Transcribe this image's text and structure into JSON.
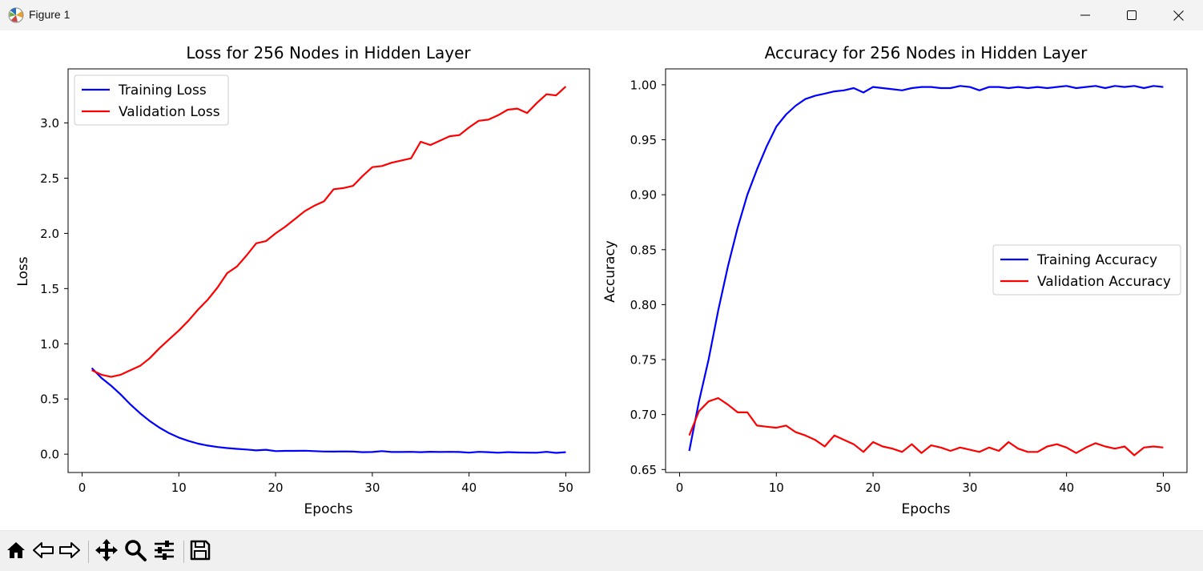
{
  "window": {
    "title": "Figure 1",
    "icons": {
      "app": "matplotlib-app-icon",
      "minimize": "minimize-icon",
      "maximize": "maximize-icon",
      "close": "close-icon"
    }
  },
  "toolbar": {
    "buttons": [
      "home-icon",
      "back-arrow-icon",
      "forward-arrow-icon",
      "pan-move-icon",
      "zoom-magnifier-icon",
      "configure-subplots-icon",
      "save-disk-icon"
    ]
  },
  "colors": {
    "training": "#0000ff",
    "validation": "#ff0000"
  },
  "chart_data": [
    {
      "type": "line",
      "title": "Loss for 256 Nodes in Hidden Layer",
      "xlabel": "Epochs",
      "ylabel": "Loss",
      "xlim": [
        -1.45,
        52.45
      ],
      "ylim": [
        -0.166,
        3.49
      ],
      "xticks": [
        0,
        10,
        20,
        30,
        40,
        50
      ],
      "yticks": [
        0.0,
        0.5,
        1.0,
        1.5,
        2.0,
        2.5,
        3.0
      ],
      "ytick_labels": [
        "0.0",
        "0.5",
        "1.0",
        "1.5",
        "2.0",
        "2.5",
        "3.0"
      ],
      "legend": "upper left",
      "x": [
        1,
        2,
        3,
        4,
        5,
        6,
        7,
        8,
        9,
        10,
        11,
        12,
        13,
        14,
        15,
        16,
        17,
        18,
        19,
        20,
        21,
        22,
        23,
        24,
        25,
        26,
        27,
        28,
        29,
        30,
        31,
        32,
        33,
        34,
        35,
        36,
        37,
        38,
        39,
        40,
        41,
        42,
        43,
        44,
        45,
        46,
        47,
        48,
        49,
        50
      ],
      "series": [
        {
          "name": "Training Loss",
          "color": "#0000ff",
          "values": [
            0.78,
            0.69,
            0.62,
            0.54,
            0.45,
            0.37,
            0.3,
            0.24,
            0.19,
            0.15,
            0.12,
            0.095,
            0.078,
            0.065,
            0.055,
            0.048,
            0.042,
            0.034,
            0.04,
            0.028,
            0.03,
            0.03,
            0.031,
            0.028,
            0.024,
            0.023,
            0.025,
            0.023,
            0.018,
            0.02,
            0.028,
            0.02,
            0.02,
            0.021,
            0.018,
            0.022,
            0.02,
            0.021,
            0.02,
            0.014,
            0.021,
            0.018,
            0.013,
            0.018,
            0.015,
            0.014,
            0.013,
            0.021,
            0.012,
            0.018
          ]
        },
        {
          "name": "Validation Loss",
          "color": "#ff0000",
          "values": [
            0.76,
            0.72,
            0.7,
            0.72,
            0.76,
            0.8,
            0.87,
            0.96,
            1.04,
            1.12,
            1.21,
            1.31,
            1.4,
            1.51,
            1.64,
            1.7,
            1.8,
            1.91,
            1.93,
            2.0,
            2.06,
            2.13,
            2.2,
            2.25,
            2.29,
            2.4,
            2.41,
            2.43,
            2.52,
            2.6,
            2.61,
            2.64,
            2.66,
            2.68,
            2.83,
            2.8,
            2.84,
            2.88,
            2.89,
            2.96,
            3.02,
            3.03,
            3.07,
            3.12,
            3.13,
            3.09,
            3.18,
            3.26,
            3.25,
            3.33
          ]
        }
      ]
    },
    {
      "type": "line",
      "title": "Accuracy for 256 Nodes in Hidden Layer",
      "xlabel": "Epochs",
      "ylabel": "Accuracy",
      "xlim": [
        -1.45,
        52.45
      ],
      "ylim": [
        0.6473,
        1.0145
      ],
      "xticks": [
        0,
        10,
        20,
        30,
        40,
        50
      ],
      "yticks": [
        0.65,
        0.7,
        0.75,
        0.8,
        0.85,
        0.9,
        0.95,
        1.0
      ],
      "ytick_labels": [
        "0.65",
        "0.70",
        "0.75",
        "0.80",
        "0.85",
        "0.90",
        "0.95",
        "1.00"
      ],
      "legend": "center right",
      "x": [
        1,
        2,
        3,
        4,
        5,
        6,
        7,
        8,
        9,
        10,
        11,
        12,
        13,
        14,
        15,
        16,
        17,
        18,
        19,
        20,
        21,
        22,
        23,
        24,
        25,
        26,
        27,
        28,
        29,
        30,
        31,
        32,
        33,
        34,
        35,
        36,
        37,
        38,
        39,
        40,
        41,
        42,
        43,
        44,
        45,
        46,
        47,
        48,
        49,
        50
      ],
      "series": [
        {
          "name": "Training Accuracy",
          "color": "#0000ff",
          "values": [
            0.667,
            0.712,
            0.75,
            0.795,
            0.835,
            0.87,
            0.9,
            0.923,
            0.944,
            0.962,
            0.973,
            0.981,
            0.987,
            0.99,
            0.992,
            0.994,
            0.995,
            0.997,
            0.993,
            0.998,
            0.997,
            0.996,
            0.995,
            0.997,
            0.998,
            0.998,
            0.997,
            0.997,
            0.999,
            0.998,
            0.995,
            0.998,
            0.998,
            0.997,
            0.998,
            0.997,
            0.998,
            0.997,
            0.998,
            0.999,
            0.997,
            0.998,
            0.999,
            0.997,
            0.999,
            0.998,
            0.999,
            0.997,
            0.999,
            0.998
          ]
        },
        {
          "name": "Validation Accuracy",
          "color": "#ff0000",
          "values": [
            0.681,
            0.703,
            0.712,
            0.715,
            0.709,
            0.702,
            0.702,
            0.69,
            0.689,
            0.688,
            0.69,
            0.684,
            0.681,
            0.677,
            0.671,
            0.681,
            0.677,
            0.673,
            0.666,
            0.675,
            0.671,
            0.669,
            0.666,
            0.673,
            0.665,
            0.672,
            0.67,
            0.667,
            0.67,
            0.668,
            0.666,
            0.67,
            0.667,
            0.675,
            0.669,
            0.666,
            0.666,
            0.671,
            0.673,
            0.67,
            0.665,
            0.67,
            0.674,
            0.671,
            0.669,
            0.671,
            0.663,
            0.67,
            0.671,
            0.67
          ]
        }
      ]
    }
  ]
}
